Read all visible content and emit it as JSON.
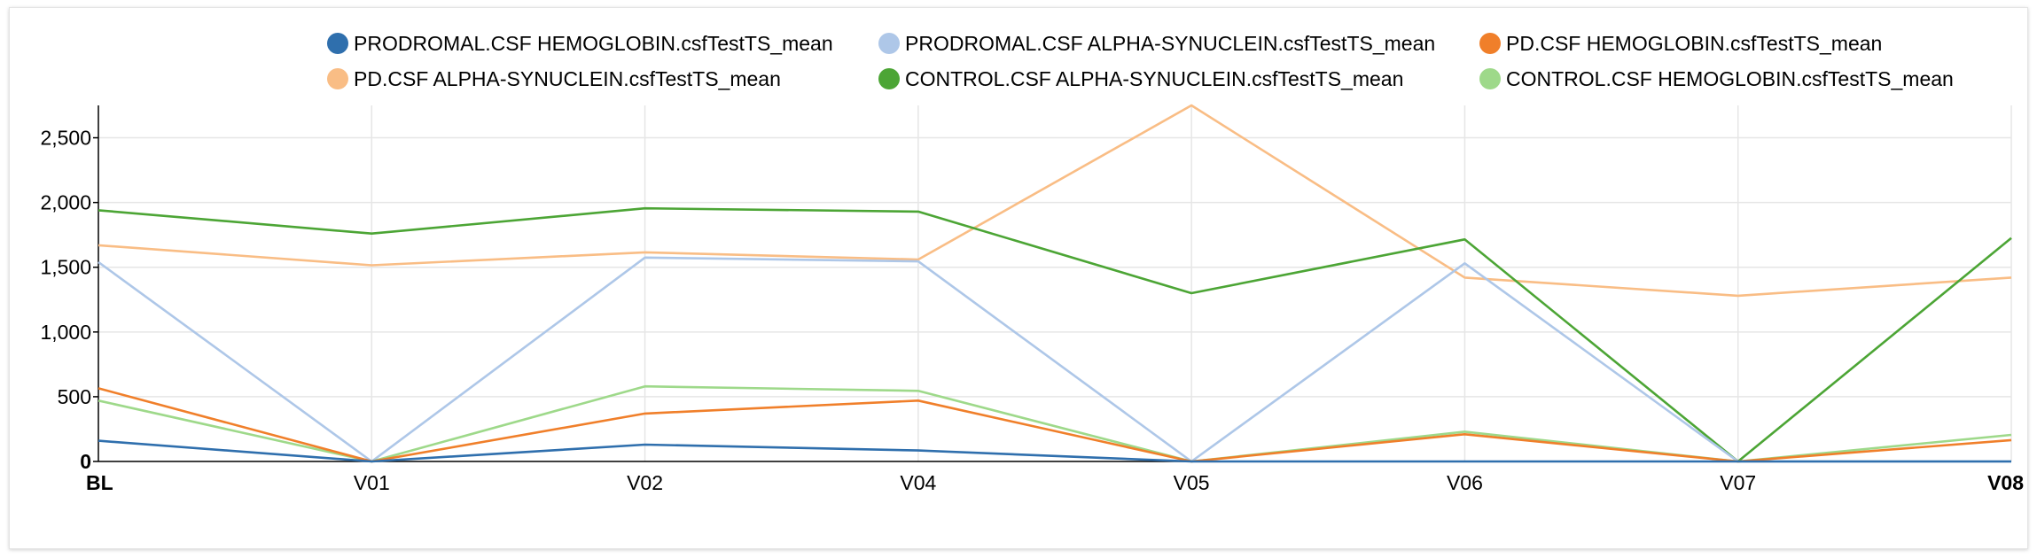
{
  "chart_data": {
    "type": "line",
    "title": "",
    "xlabel": "",
    "ylabel": "",
    "categories": [
      "BL",
      "V01",
      "V02",
      "V04",
      "V05",
      "V06",
      "V07",
      "V08"
    ],
    "ylim": [
      0,
      2750
    ],
    "yticks": [
      0,
      500,
      1000,
      1500,
      2000,
      2500
    ],
    "ytick_labels": [
      "0",
      "500",
      "1,000",
      "1,500",
      "2,000",
      "2,500"
    ],
    "grid": true,
    "legend_position": "top",
    "series": [
      {
        "name": "PRODROMAL.CSF HEMOGLOBIN.csfTestTS_mean",
        "color": "#2f6fad",
        "values": [
          160,
          0,
          130,
          85,
          0,
          0,
          0,
          0
        ]
      },
      {
        "name": "PRODROMAL.CSF ALPHA-SYNUCLEIN.csfTestTS_mean",
        "color": "#aec7e8",
        "values": [
          1540,
          0,
          1575,
          1545,
          0,
          1530,
          0,
          0
        ]
      },
      {
        "name": "PD.CSF HEMOGLOBIN.csfTestTS_mean",
        "color": "#f07f2a",
        "values": [
          565,
          0,
          370,
          470,
          0,
          210,
          0,
          165
        ]
      },
      {
        "name": "PD.CSF ALPHA-SYNUCLEIN.csfTestTS_mean",
        "color": "#f9bd85",
        "values": [
          1670,
          1515,
          1615,
          1560,
          2750,
          1420,
          1280,
          1420
        ]
      },
      {
        "name": "CONTROL.CSF ALPHA-SYNUCLEIN.csfTestTS_mean",
        "color": "#4ca535",
        "values": [
          1940,
          1760,
          1955,
          1930,
          1300,
          1715,
          0,
          1725
        ]
      },
      {
        "name": "CONTROL.CSF HEMOGLOBIN.csfTestTS_mean",
        "color": "#9ed98a",
        "values": [
          470,
          0,
          580,
          545,
          0,
          230,
          0,
          205
        ]
      }
    ]
  }
}
